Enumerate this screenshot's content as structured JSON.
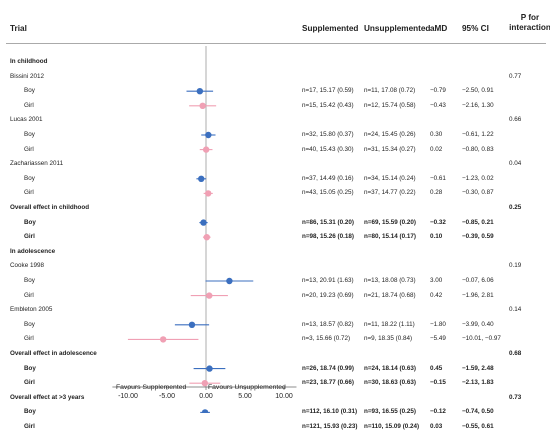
{
  "headers": {
    "trial": "Trial",
    "supplemented": "Supplemented",
    "unsupplemented": "Unsupplemented",
    "amd": "aMD",
    "ci": "95% CI",
    "p_line1": "P for",
    "p_line2": "interaction"
  },
  "footer": {
    "favours_left": "Favours Supplemented",
    "favours_right": "Favours Unsupplemented"
  },
  "colors": {
    "boy": "#3b6fbf",
    "girl": "#f0a0b4",
    "axis": "#999999",
    "separator": "#aaaaaa"
  },
  "chart_data": {
    "type": "forest",
    "x_axis": {
      "range": [
        -12,
        12
      ],
      "ticks": [
        "-10.00",
        "-5.00",
        "0.00",
        "5.00",
        "10.00"
      ],
      "tick_values": [
        -10,
        -5,
        0,
        5,
        10
      ]
    },
    "rows": [
      {
        "kind": "section",
        "label": "In childhood",
        "p": ""
      },
      {
        "kind": "trial",
        "label": "Bissini 2012",
        "p": "0.77"
      },
      {
        "kind": "data",
        "label": "Boy",
        "group": "boy",
        "sup": "n=17, 15.17 (0.59)",
        "unsup": "n=11, 17.08 (0.72)",
        "amd": "−0.79",
        "ci": "−2.50, 0.91",
        "est": -0.79,
        "lo": -2.5,
        "hi": 0.91,
        "bold": false
      },
      {
        "kind": "data",
        "label": "Girl",
        "group": "girl",
        "sup": "n=15, 15.42 (0.43)",
        "unsup": "n=12, 15.74 (0.58)",
        "amd": "−0.43",
        "ci": "−2.16, 1.30",
        "est": -0.43,
        "lo": -2.16,
        "hi": 1.3,
        "bold": false
      },
      {
        "kind": "trial",
        "label": "Lucas 2001",
        "p": "0.66"
      },
      {
        "kind": "data",
        "label": "Boy",
        "group": "boy",
        "sup": "n=32, 15.80 (0.37)",
        "unsup": "n=24, 15.45 (0.26)",
        "amd": "0.30",
        "ci": "−0.61, 1.22",
        "est": 0.3,
        "lo": -0.61,
        "hi": 1.22,
        "bold": false
      },
      {
        "kind": "data",
        "label": "Girl",
        "group": "girl",
        "sup": "n=40, 15.43 (0.30)",
        "unsup": "n=31, 15.34 (0.27)",
        "amd": "0.02",
        "ci": "−0.80, 0.83",
        "est": 0.02,
        "lo": -0.8,
        "hi": 0.83,
        "bold": false
      },
      {
        "kind": "trial",
        "label": "Zachariassen 2011",
        "p": "0.04"
      },
      {
        "kind": "data",
        "label": "Boy",
        "group": "boy",
        "sup": "n=37, 14.49 (0.16)",
        "unsup": "n=34, 15.14 (0.24)",
        "amd": "−0.61",
        "ci": "−1.23, 0.02",
        "est": -0.61,
        "lo": -1.23,
        "hi": 0.02,
        "bold": false
      },
      {
        "kind": "data",
        "label": "Girl",
        "group": "girl",
        "sup": "n=43, 15.05 (0.25)",
        "unsup": "n=37, 14.77 (0.22)",
        "amd": "0.28",
        "ci": "−0.30, 0.87",
        "est": 0.28,
        "lo": -0.3,
        "hi": 0.87,
        "bold": false
      },
      {
        "kind": "overall",
        "label": "Overall effect in childhood",
        "p": "0.25"
      },
      {
        "kind": "data",
        "label": "Boy",
        "group": "boy",
        "sup": "n=86, 15.31 (0.20)",
        "unsup": "n=69, 15.59 (0.20)",
        "amd": "−0.32",
        "ci": "−0.85, 0.21",
        "est": -0.32,
        "lo": -0.85,
        "hi": 0.21,
        "bold": true
      },
      {
        "kind": "data",
        "label": "Girl",
        "group": "girl",
        "sup": "n=98, 15.26 (0.18)",
        "unsup": "n=80, 15.14 (0.17)",
        "amd": "0.10",
        "ci": "−0.39, 0.59",
        "est": 0.1,
        "lo": -0.39,
        "hi": 0.59,
        "bold": true
      },
      {
        "kind": "section",
        "label": "In adolescence",
        "p": ""
      },
      {
        "kind": "trial",
        "label": "Cooke 1998",
        "p": "0.19"
      },
      {
        "kind": "data",
        "label": "Boy",
        "group": "boy",
        "sup": "n=13, 20.91 (1.63)",
        "unsup": "n=13, 18.08 (0.73)",
        "amd": "3.00",
        "ci": "−0.07, 6.06",
        "est": 3.0,
        "lo": -0.07,
        "hi": 6.06,
        "bold": false
      },
      {
        "kind": "data",
        "label": "Girl",
        "group": "girl",
        "sup": "n=20, 19.23 (0.69)",
        "unsup": "n=21, 18.74 (0.68)",
        "amd": "0.42",
        "ci": "−1.96, 2.81",
        "est": 0.42,
        "lo": -1.96,
        "hi": 2.81,
        "bold": false
      },
      {
        "kind": "trial",
        "label": "Embleton 2005",
        "p": "0.14"
      },
      {
        "kind": "data",
        "label": "Boy",
        "group": "boy",
        "sup": "n=13, 18.57 (0.82)",
        "unsup": "n=11, 18.22 (1.11)",
        "amd": "−1.80",
        "ci": "−3.99, 0.40",
        "est": -1.8,
        "lo": -3.99,
        "hi": 0.4,
        "bold": false
      },
      {
        "kind": "data",
        "label": "Girl",
        "group": "girl",
        "sup": "n=3, 15.66 (0.72)",
        "unsup": "n=9, 18.35 (0.84)",
        "amd": "−5.49",
        "ci": "−10.01, −0.97",
        "est": -5.49,
        "lo": -10.01,
        "hi": -0.97,
        "bold": false
      },
      {
        "kind": "overall",
        "label": "Overall effect in adolescence",
        "p": "0.68"
      },
      {
        "kind": "data",
        "label": "Boy",
        "group": "boy",
        "sup": "n=26, 18.74 (0.99)",
        "unsup": "n=24, 18.14 (0.63)",
        "amd": "0.45",
        "ci": "−1.59, 2.48",
        "est": 0.45,
        "lo": -1.59,
        "hi": 2.48,
        "bold": true
      },
      {
        "kind": "data",
        "label": "Girl",
        "group": "girl",
        "sup": "n=23, 18.77 (0.66)",
        "unsup": "n=30, 18.63 (0.63)",
        "amd": "−0.15",
        "ci": "−2.13, 1.83",
        "est": -0.15,
        "lo": -2.13,
        "hi": 1.83,
        "bold": true
      },
      {
        "kind": "overall",
        "label": "Overall effect at >3 years",
        "p": "0.73"
      },
      {
        "kind": "data",
        "label": "Boy",
        "group": "boy",
        "sup": "n=112, 16.10 (0.31)",
        "unsup": "n=93, 16.55 (0.25)",
        "amd": "−0.12",
        "ci": "−0.74, 0.50",
        "est": -0.12,
        "lo": -0.74,
        "hi": 0.5,
        "bold": true
      },
      {
        "kind": "data",
        "label": "Girl",
        "group": "girl",
        "sup": "n=121, 15.93 (0.23)",
        "unsup": "n=110, 15.09 (0.24)",
        "amd": "0.03",
        "ci": "−0.55, 0.61",
        "est": 0.03,
        "lo": -0.55,
        "hi": 0.61,
        "bold": true
      }
    ]
  }
}
